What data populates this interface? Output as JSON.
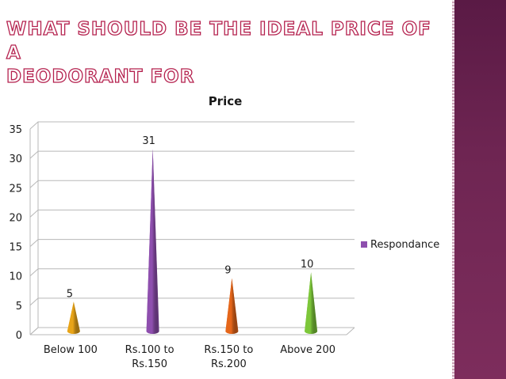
{
  "slide": {
    "title_line1": "WHAT SHOULD BE THE IDEAL PRICE OF A",
    "title_line2": "DEODORANT FOR"
  },
  "chart_data": {
    "type": "bar",
    "bar_shape": "cone",
    "title": "Price",
    "categories": [
      [
        "Below 100"
      ],
      [
        "Rs.100 to",
        "Rs.150"
      ],
      [
        "Rs.150 to",
        "Rs.200"
      ],
      [
        "Above 200"
      ]
    ],
    "series": [
      {
        "name": "Respondance",
        "values": [
          5,
          31,
          9,
          10
        ]
      }
    ],
    "bar_colors": [
      "#e8a418",
      "#8e4fae",
      "#e5661a",
      "#7dc73a"
    ],
    "legend_color": "#8e4fae",
    "ylim": [
      0,
      35
    ],
    "yticks": [
      0,
      5,
      10,
      15,
      20,
      25,
      30,
      35
    ],
    "grid": true,
    "legend_position": "right",
    "xlabel": "",
    "ylabel": ""
  }
}
